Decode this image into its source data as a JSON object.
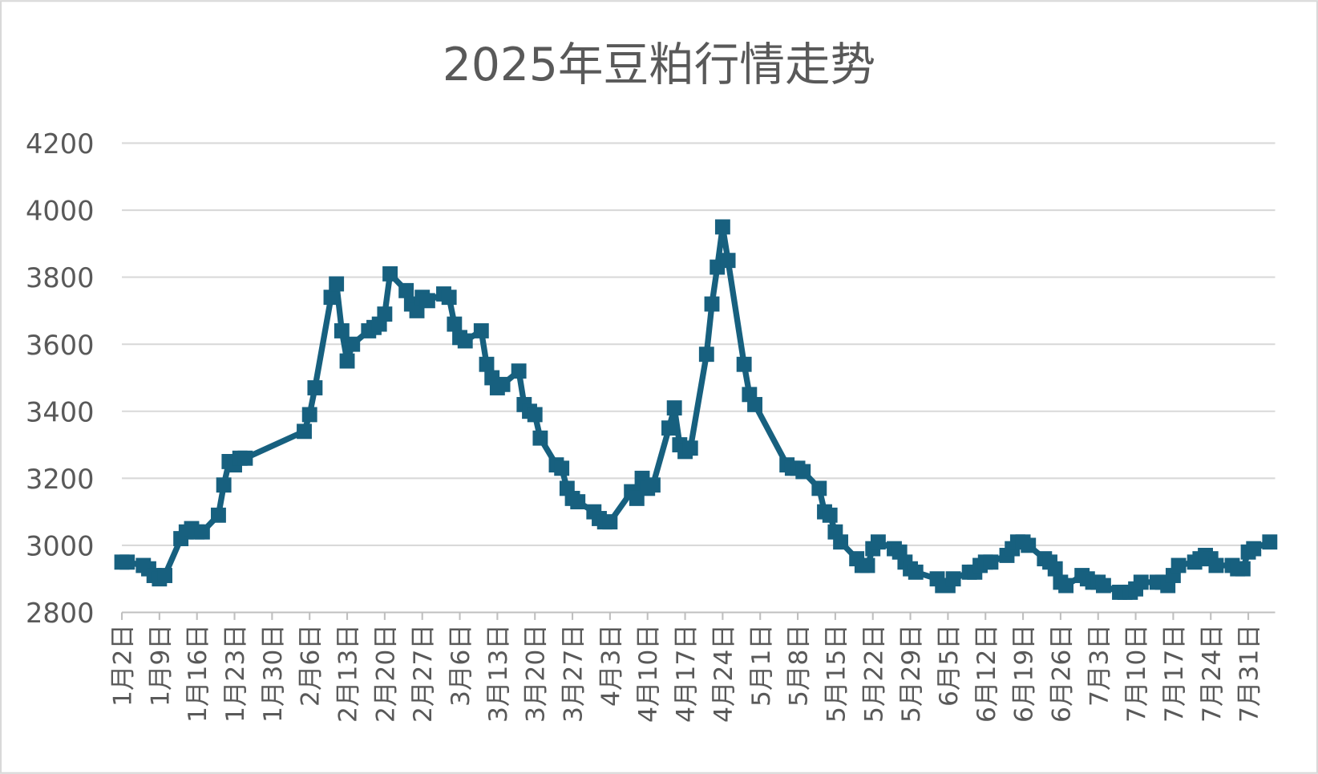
{
  "chart_data": {
    "type": "line",
    "title": "2025年豆粕行情走势",
    "x": [
      0,
      1,
      4,
      5,
      6,
      7,
      8,
      11,
      12,
      13,
      14,
      15,
      18,
      19,
      20,
      21,
      22,
      23,
      34,
      35,
      36,
      39,
      40,
      41,
      42,
      43,
      46,
      47,
      48,
      49,
      50,
      53,
      54,
      55,
      56,
      57,
      60,
      61,
      62,
      63,
      64,
      67,
      68,
      69,
      70,
      71,
      74,
      75,
      76,
      77,
      78,
      81,
      82,
      83,
      84,
      85,
      88,
      89,
      90,
      91,
      95,
      96,
      97,
      98,
      99,
      102,
      103,
      104,
      105,
      106,
      109,
      110,
      111,
      112,
      113,
      116,
      117,
      118,
      124,
      125,
      126,
      127,
      130,
      131,
      132,
      133,
      134,
      137,
      138,
      139,
      140,
      141,
      144,
      145,
      146,
      147,
      148,
      152,
      153,
      154,
      155,
      158,
      159,
      160,
      161,
      162,
      165,
      166,
      167,
      168,
      169,
      172,
      173,
      174,
      175,
      176,
      179,
      180,
      181,
      182,
      183,
      186,
      187,
      188,
      189,
      190,
      193,
      194,
      195,
      196,
      197,
      200,
      201,
      202,
      203,
      204,
      207,
      208,
      209,
      210,
      211,
      214
    ],
    "series": [
      {
        "name": "豆粕",
        "color": "#17607f",
        "values": [
          2950,
          2950,
          2940,
          2930,
          2910,
          2900,
          2910,
          3020,
          3040,
          3050,
          3040,
          3040,
          3090,
          3180,
          3250,
          3240,
          3260,
          3260,
          3340,
          3390,
          3470,
          3740,
          3780,
          3640,
          3550,
          3600,
          3640,
          3650,
          3660,
          3690,
          3810,
          3760,
          3720,
          3700,
          3740,
          3730,
          3750,
          3740,
          3660,
          3620,
          3610,
          3640,
          3540,
          3500,
          3470,
          3480,
          3520,
          3420,
          3400,
          3390,
          3320,
          3240,
          3230,
          3170,
          3140,
          3130,
          3100,
          3080,
          3070,
          3070,
          3160,
          3140,
          3200,
          3170,
          3180,
          3350,
          3410,
          3300,
          3280,
          3290,
          3570,
          3720,
          3830,
          3950,
          3850,
          3540,
          3450,
          3420,
          3240,
          3230,
          3230,
          3220,
          3170,
          3100,
          3090,
          3040,
          3010,
          2960,
          2940,
          2940,
          2990,
          3010,
          2990,
          2980,
          2950,
          2930,
          2920,
          2900,
          2880,
          2880,
          2900,
          2920,
          2920,
          2940,
          2950,
          2950,
          2970,
          2990,
          3010,
          3010,
          3000,
          2960,
          2950,
          2930,
          2890,
          2880,
          2910,
          2900,
          2890,
          2890,
          2880,
          2860,
          2860,
          2860,
          2870,
          2890,
          2890,
          2890,
          2880,
          2910,
          2940,
          2950,
          2960,
          2970,
          2960,
          2940,
          2940,
          2930,
          2930,
          2980,
          2990,
          3010
        ]
      }
    ],
    "xlim": [
      0,
      215
    ],
    "xticks": [
      {
        "value": 0,
        "label": "1月2日"
      },
      {
        "value": 7,
        "label": "1月9日"
      },
      {
        "value": 14,
        "label": "1月16日"
      },
      {
        "value": 21,
        "label": "1月23日"
      },
      {
        "value": 28,
        "label": "1月30日"
      },
      {
        "value": 35,
        "label": "2月6日"
      },
      {
        "value": 42,
        "label": "2月13日"
      },
      {
        "value": 49,
        "label": "2月20日"
      },
      {
        "value": 56,
        "label": "2月27日"
      },
      {
        "value": 63,
        "label": "3月6日"
      },
      {
        "value": 70,
        "label": "3月13日"
      },
      {
        "value": 77,
        "label": "3月20日"
      },
      {
        "value": 84,
        "label": "3月27日"
      },
      {
        "value": 91,
        "label": "4月3日"
      },
      {
        "value": 98,
        "label": "4月10日"
      },
      {
        "value": 105,
        "label": "4月17日"
      },
      {
        "value": 112,
        "label": "4月24日"
      },
      {
        "value": 119,
        "label": "5月1日"
      },
      {
        "value": 126,
        "label": "5月8日"
      },
      {
        "value": 133,
        "label": "5月15日"
      },
      {
        "value": 140,
        "label": "5月22日"
      },
      {
        "value": 147,
        "label": "5月29日"
      },
      {
        "value": 154,
        "label": "6月5日"
      },
      {
        "value": 161,
        "label": "6月12日"
      },
      {
        "value": 168,
        "label": "6月19日"
      },
      {
        "value": 175,
        "label": "6月26日"
      },
      {
        "value": 182,
        "label": "7月3日"
      },
      {
        "value": 189,
        "label": "7月10日"
      },
      {
        "value": 196,
        "label": "7月17日"
      },
      {
        "value": 203,
        "label": "7月24日"
      },
      {
        "value": 210,
        "label": "7月31日"
      }
    ],
    "ylim": [
      2800,
      4200
    ],
    "yticks": [
      2800,
      3000,
      3200,
      3400,
      3600,
      3800,
      4000,
      4200
    ],
    "grid": true
  }
}
